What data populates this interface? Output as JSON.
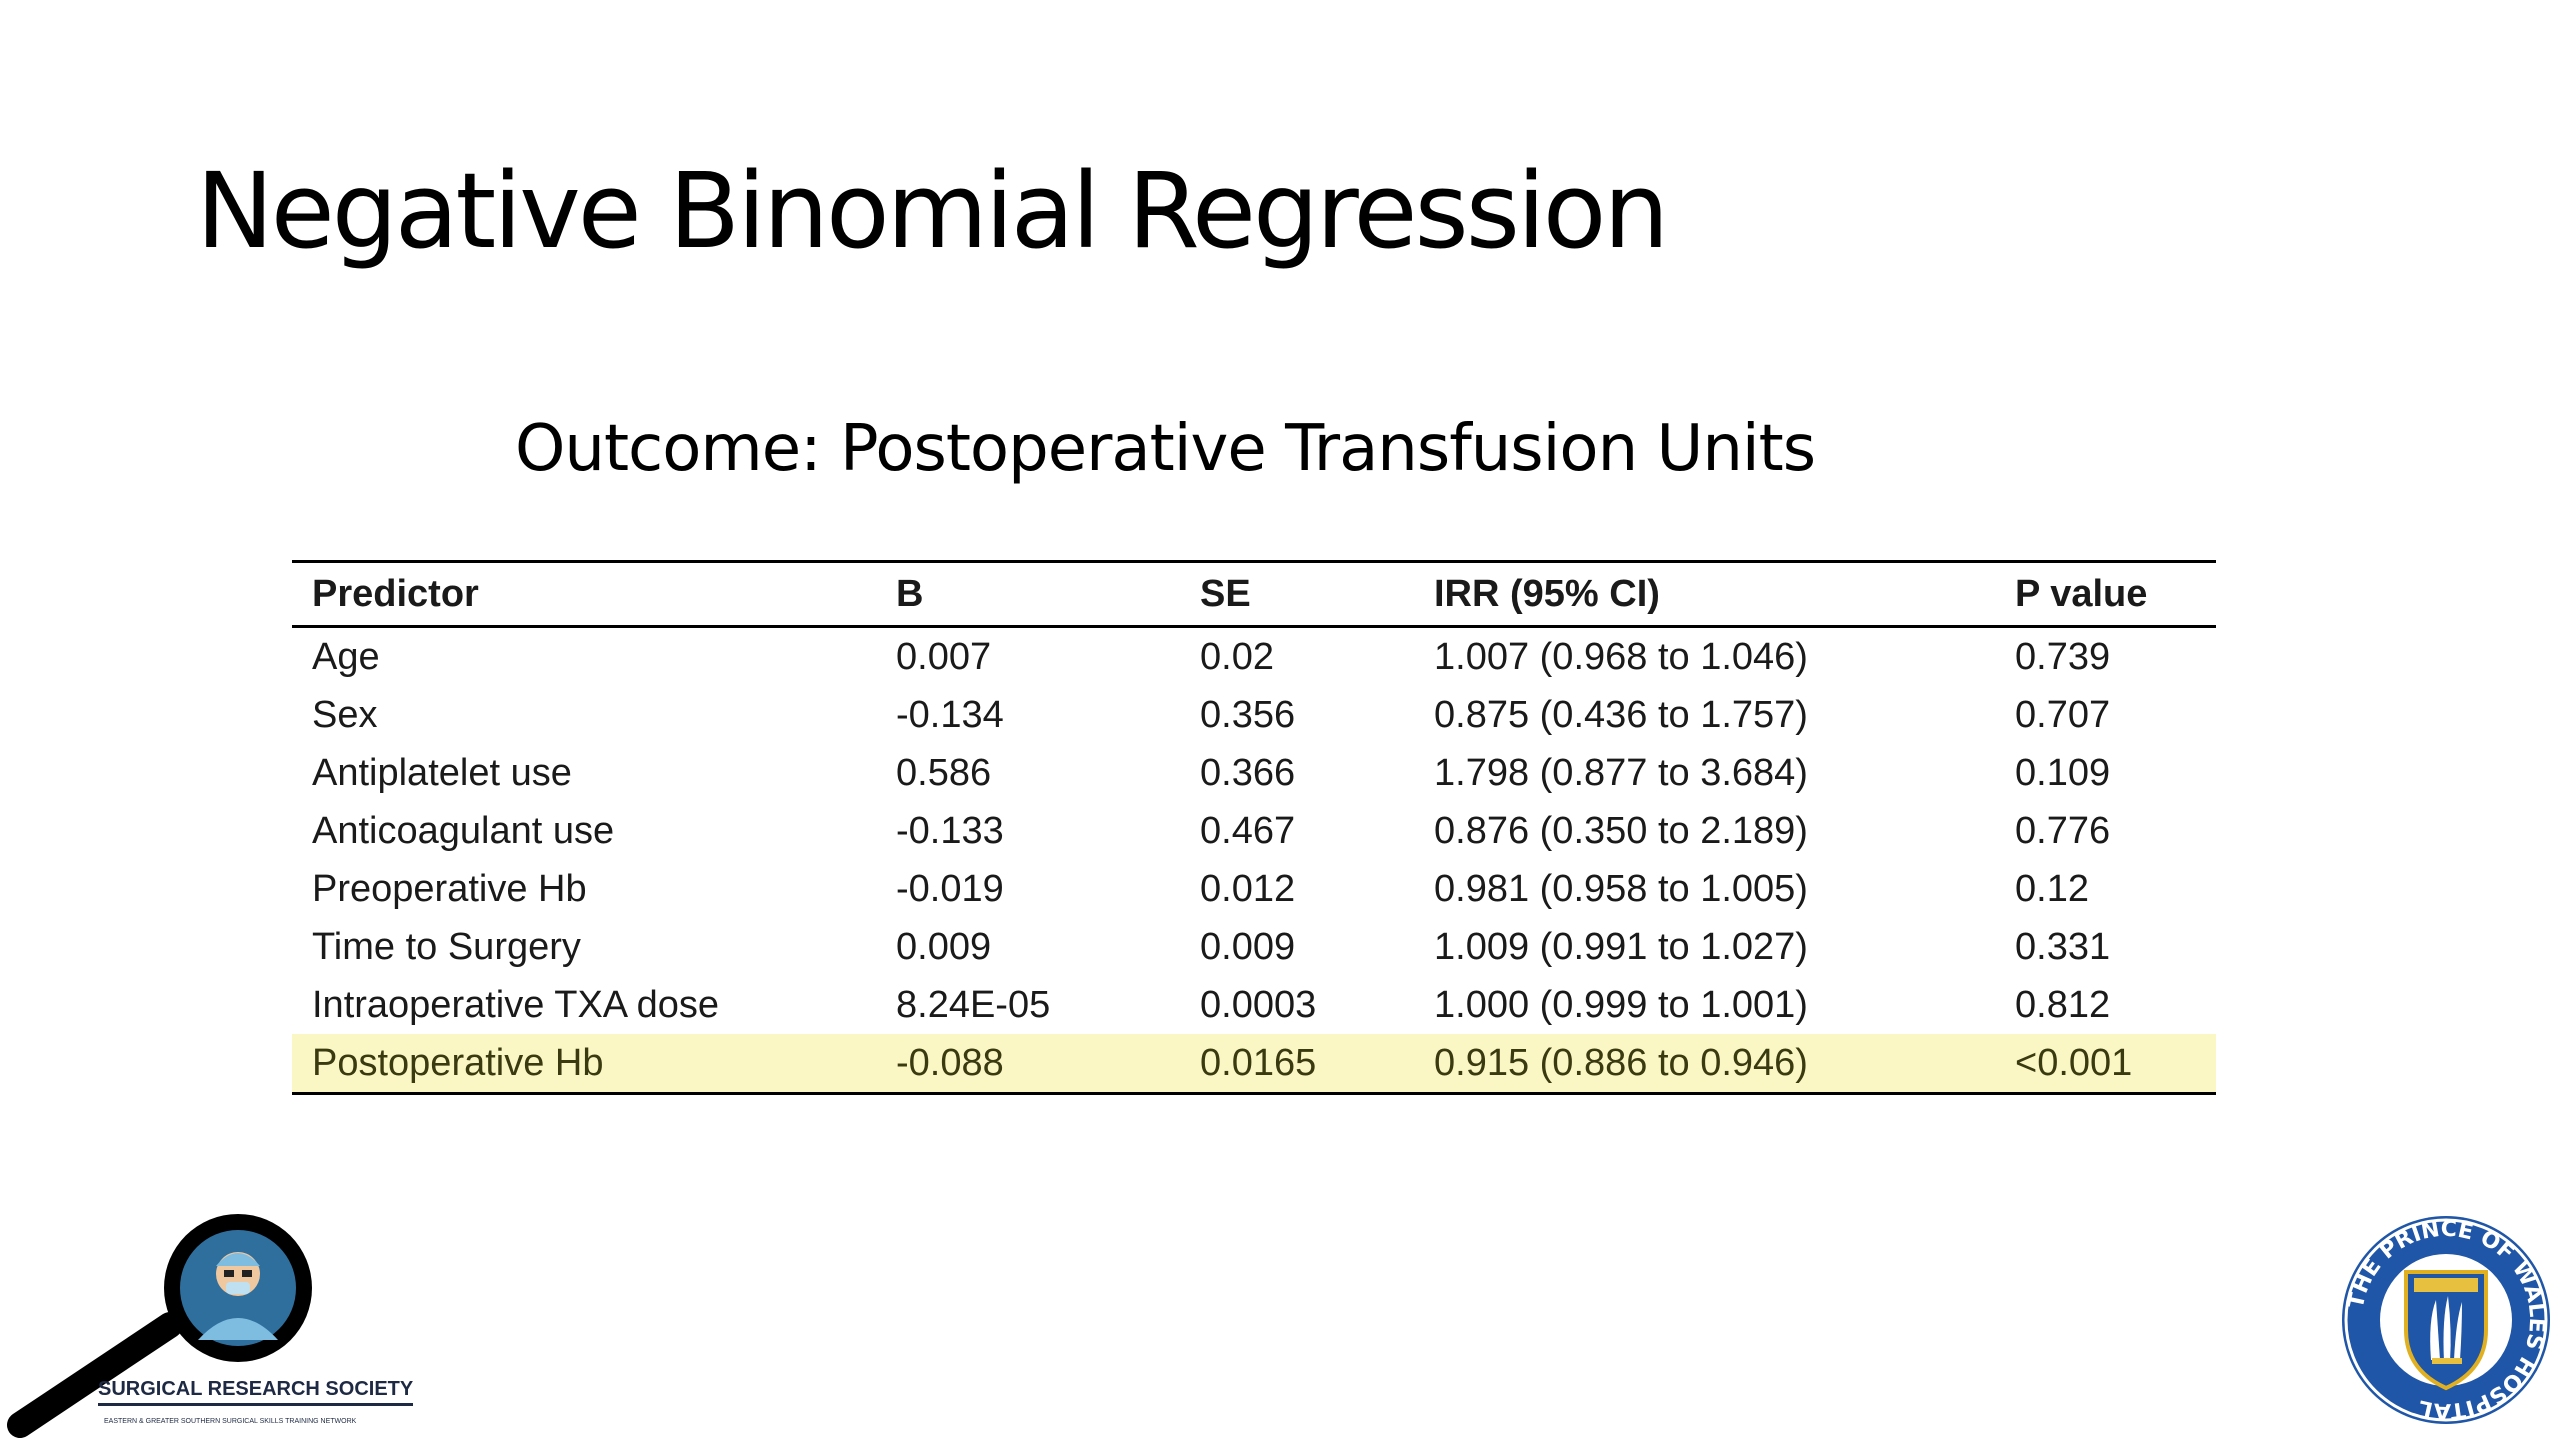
{
  "slide": {
    "title": "Negative Binomial Regression",
    "subtitle": "Outcome: Postoperative Transfusion Units"
  },
  "table": {
    "headers": [
      "Predictor",
      "B",
      "SE",
      "IRR (95% CI)",
      "P value"
    ],
    "rows": [
      {
        "predictor": "Age",
        "b": "0.007",
        "se": "0.02",
        "irr": "1.007 (0.968 to 1.046)",
        "p": "0.739"
      },
      {
        "predictor": "Sex",
        "b": "-0.134",
        "se": "0.356",
        "irr": "0.875 (0.436 to 1.757)",
        "p": "0.707"
      },
      {
        "predictor": "Antiplatelet use",
        "b": "0.586",
        "se": "0.366",
        "irr": "1.798 (0.877 to 3.684)",
        "p": "0.109"
      },
      {
        "predictor": "Anticoagulant use",
        "b": "-0.133",
        "se": "0.467",
        "irr": "0.876 (0.350 to 2.189)",
        "p": "0.776"
      },
      {
        "predictor": "Preoperative Hb",
        "b": "-0.019",
        "se": "0.012",
        "irr": "0.981 (0.958 to 1.005)",
        "p": "0.12"
      },
      {
        "predictor": "Time to Surgery",
        "b": "0.009",
        "se": "0.009",
        "irr": "1.009 (0.991 to 1.027)",
        "p": "0.331"
      },
      {
        "predictor": "Intraoperative TXA dose",
        "b": "8.24E-05",
        "se": "0.0003",
        "irr": "1.000 (0.999 to 1.001)",
        "p": "0.812"
      },
      {
        "predictor": "Postoperative Hb",
        "b": "-0.088",
        "se": "0.0165",
        "irr": "0.915 (0.886 to 0.946)",
        "p": "<0.001"
      }
    ],
    "highlight_color": "#fbf7c4"
  },
  "logos": {
    "left": {
      "name": "SURGICAL RESEARCH SOCIETY",
      "tagline": "EASTERN & GREATER SOUTHERN SURGICAL SKILLS TRAINING NETWORK"
    },
    "right": {
      "ring_text": "THE PRINCE OF WALES HOSPITAL"
    }
  }
}
